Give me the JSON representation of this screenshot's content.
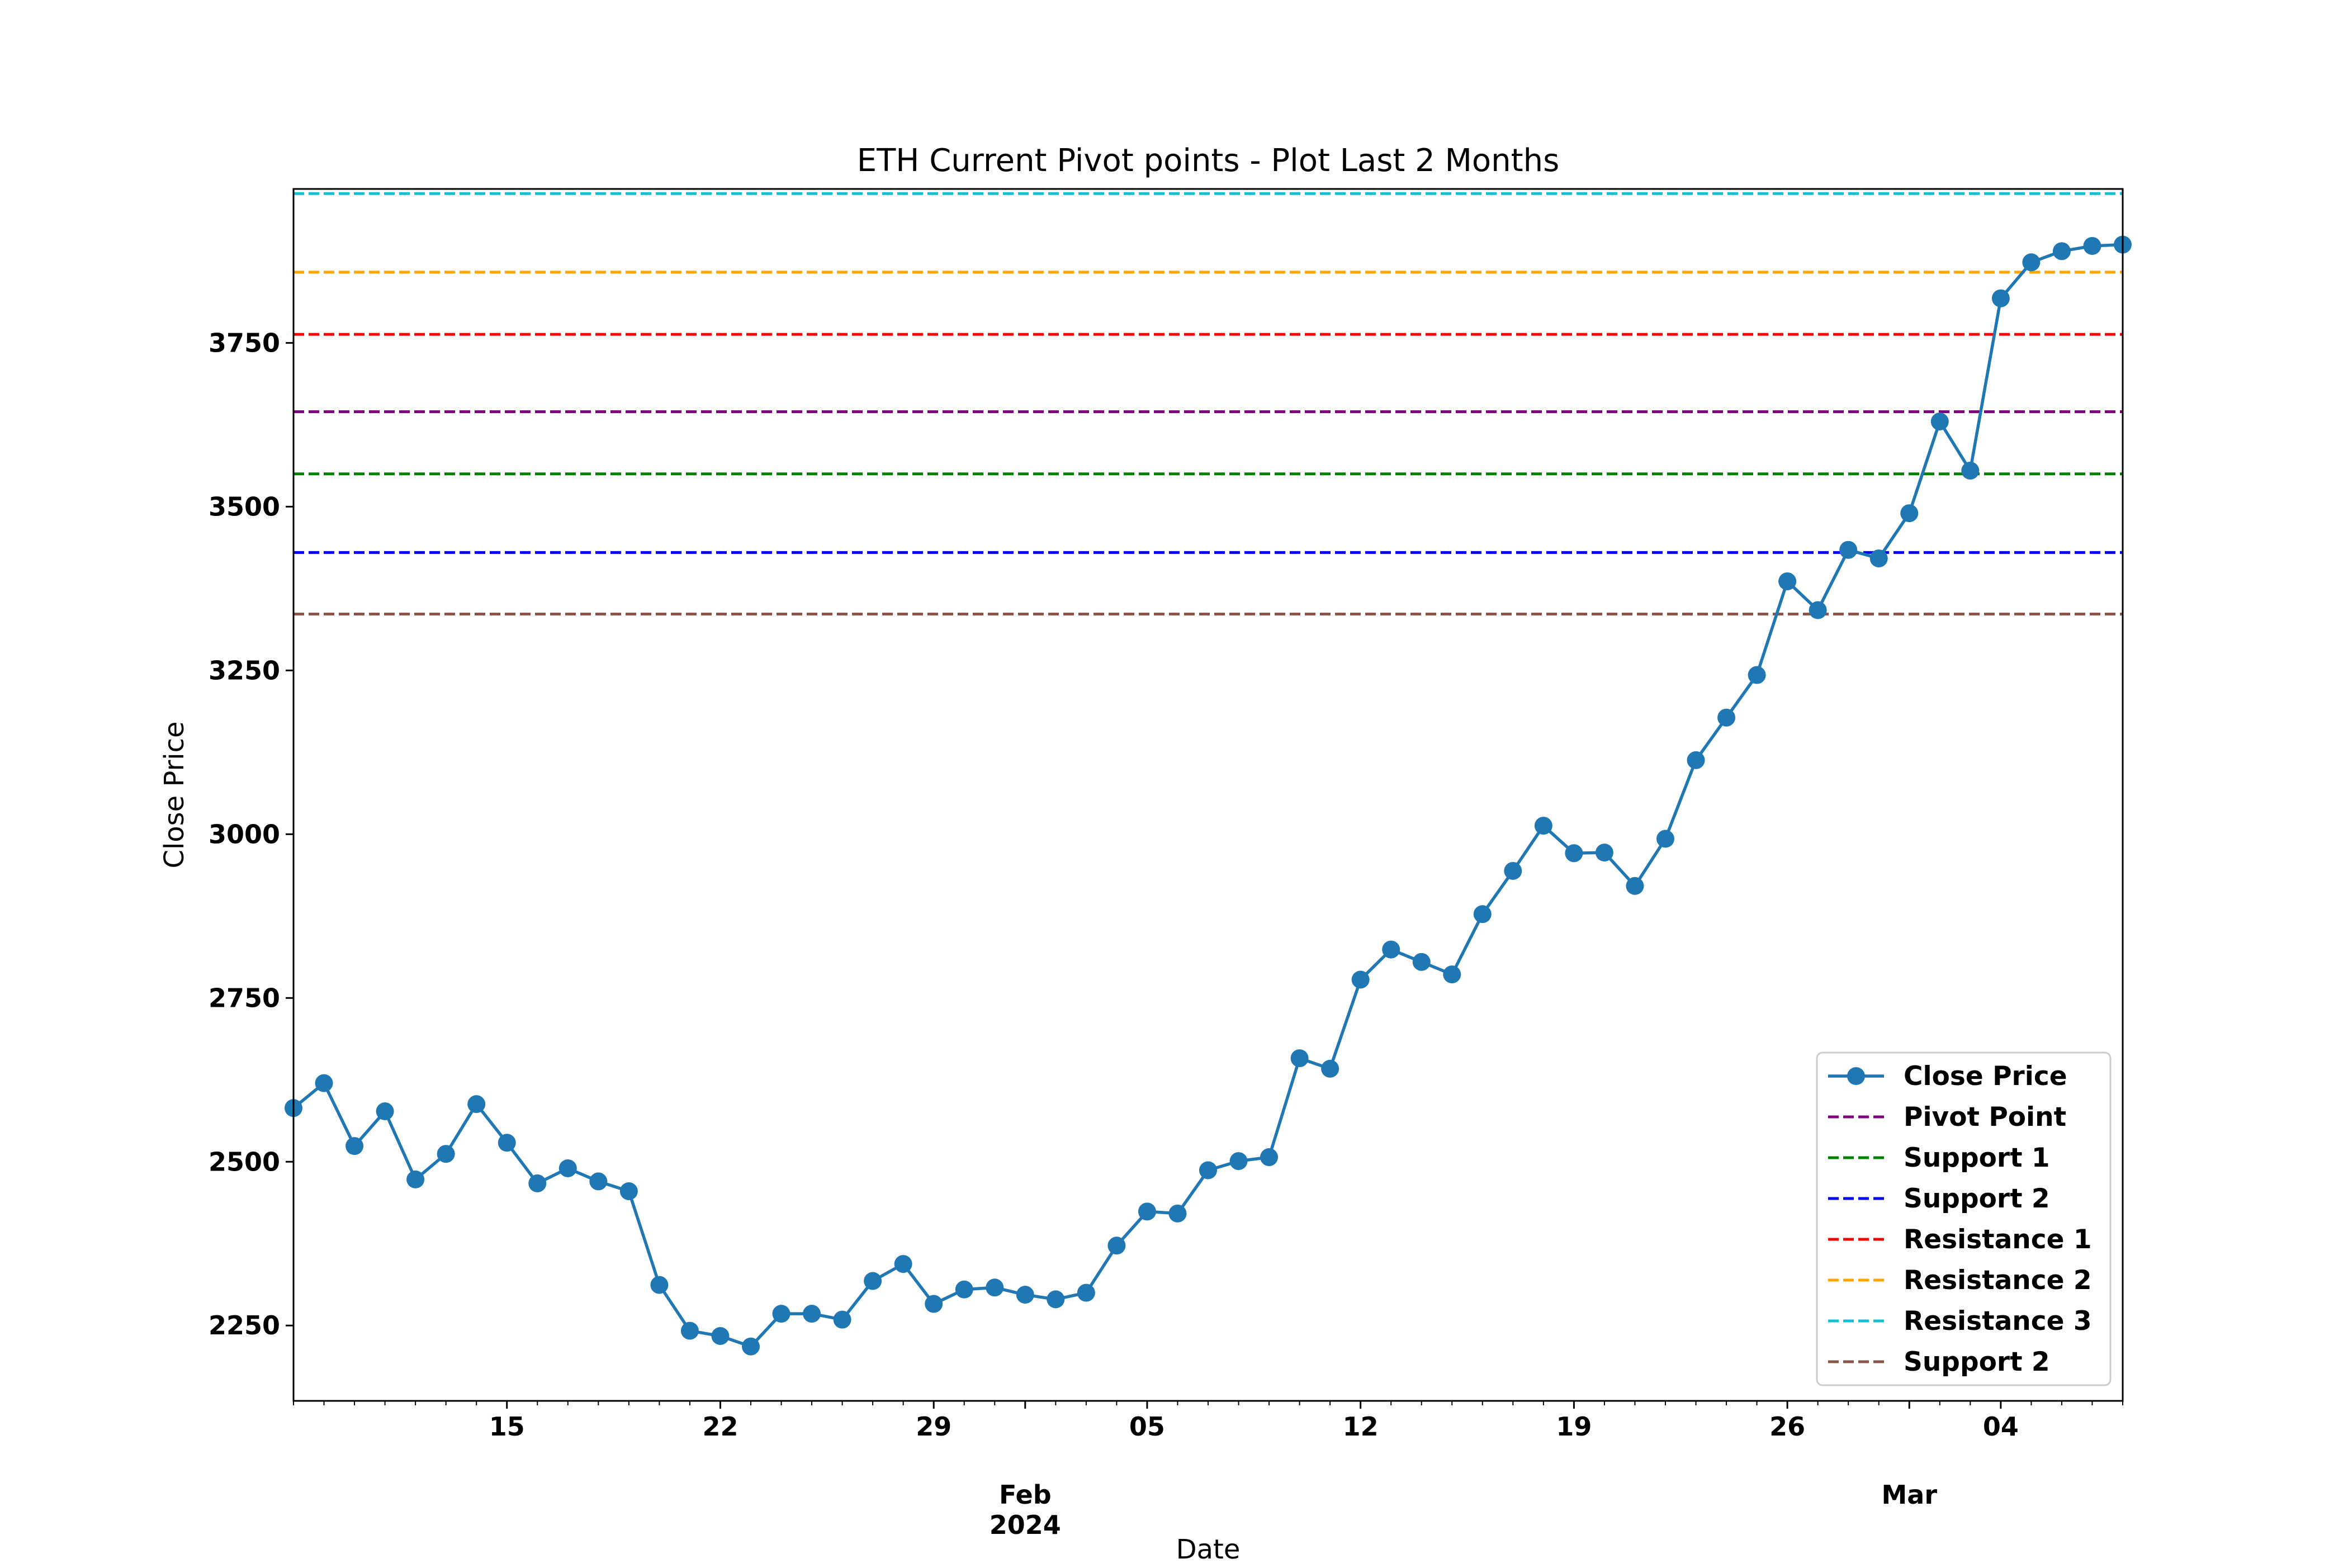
{
  "chart_data": {
    "type": "line",
    "title": "ETH Current Pivot points - Plot Last 2 Months",
    "xlabel": "Date",
    "ylabel": "Close Price",
    "x_range": [
      "2024-01-08",
      "2024-03-08"
    ],
    "ylim": [
      2135,
      3985
    ],
    "y_ticks": [
      2250,
      2500,
      2750,
      3000,
      3250,
      3500,
      3750
    ],
    "x_major_ticks": [
      {
        "date": "2024-01-15",
        "label": "15"
      },
      {
        "date": "2024-01-22",
        "label": "22"
      },
      {
        "date": "2024-01-29",
        "label": "29"
      },
      {
        "date": "2024-02-01",
        "label": "Feb\n2024"
      },
      {
        "date": "2024-02-05",
        "label": "05"
      },
      {
        "date": "2024-02-12",
        "label": "12"
      },
      {
        "date": "2024-02-19",
        "label": "19"
      },
      {
        "date": "2024-02-26",
        "label": "26"
      },
      {
        "date": "2024-03-01",
        "label": "Mar"
      },
      {
        "date": "2024-03-04",
        "label": "04"
      }
    ],
    "grid": false,
    "legend_position": "lower-right",
    "series": [
      {
        "name": "Close Price",
        "color": "#1f77b4",
        "style": "line-marker",
        "x": [
          "2024-01-08",
          "2024-01-09",
          "2024-01-10",
          "2024-01-11",
          "2024-01-12",
          "2024-01-13",
          "2024-01-14",
          "2024-01-15",
          "2024-01-16",
          "2024-01-17",
          "2024-01-18",
          "2024-01-19",
          "2024-01-20",
          "2024-01-21",
          "2024-01-22",
          "2024-01-23",
          "2024-01-24",
          "2024-01-25",
          "2024-01-26",
          "2024-01-27",
          "2024-01-28",
          "2024-01-29",
          "2024-01-30",
          "2024-01-31",
          "2024-02-01",
          "2024-02-02",
          "2024-02-03",
          "2024-02-04",
          "2024-02-05",
          "2024-02-06",
          "2024-02-07",
          "2024-02-08",
          "2024-02-09",
          "2024-02-10",
          "2024-02-11",
          "2024-02-12",
          "2024-02-13",
          "2024-02-14",
          "2024-02-15",
          "2024-02-16",
          "2024-02-17",
          "2024-02-18",
          "2024-02-19",
          "2024-02-20",
          "2024-02-21",
          "2024-02-22",
          "2024-02-23",
          "2024-02-24",
          "2024-02-25",
          "2024-02-26",
          "2024-02-27",
          "2024-02-28",
          "2024-02-29",
          "2024-03-01",
          "2024-03-02",
          "2024-03-03",
          "2024-03-04",
          "2024-03-05",
          "2024-03-06",
          "2024-03-07",
          "2024-03-08"
        ],
        "values": [
          2582,
          2620,
          2524,
          2577,
          2473,
          2512,
          2588,
          2529,
          2467,
          2490,
          2470,
          2455,
          2312,
          2242,
          2234,
          2218,
          2268,
          2268,
          2259,
          2318,
          2344,
          2283,
          2305,
          2308,
          2297,
          2290,
          2300,
          2372,
          2424,
          2421,
          2487,
          2501,
          2507,
          2658,
          2642,
          2778,
          2824,
          2805,
          2786,
          2878,
          2944,
          3013,
          2971,
          2972,
          2921,
          2993,
          3113,
          3178,
          3243,
          3386,
          3342,
          3434,
          3421,
          3490,
          3630,
          3555,
          3818,
          3873,
          3890,
          3898,
          3900
        ]
      },
      {
        "name": "Pivot Point",
        "color": "#800080",
        "style": "dashed",
        "value": 3645
      },
      {
        "name": "Support 1",
        "color": "#008000",
        "style": "dashed",
        "value": 3550
      },
      {
        "name": "Support 2",
        "color": "#0000ff",
        "style": "dashed",
        "value": 3430
      },
      {
        "name": "Resistance 1",
        "color": "#ff0000",
        "style": "dashed",
        "value": 3763
      },
      {
        "name": "Resistance 2",
        "color": "#ffa500",
        "style": "dashed",
        "value": 3858
      },
      {
        "name": "Resistance 3",
        "color": "#17becf",
        "style": "dashed",
        "value": 3978
      },
      {
        "name": "Support 2",
        "color": "#8c564b",
        "style": "dashed",
        "value": 3336
      }
    ]
  }
}
